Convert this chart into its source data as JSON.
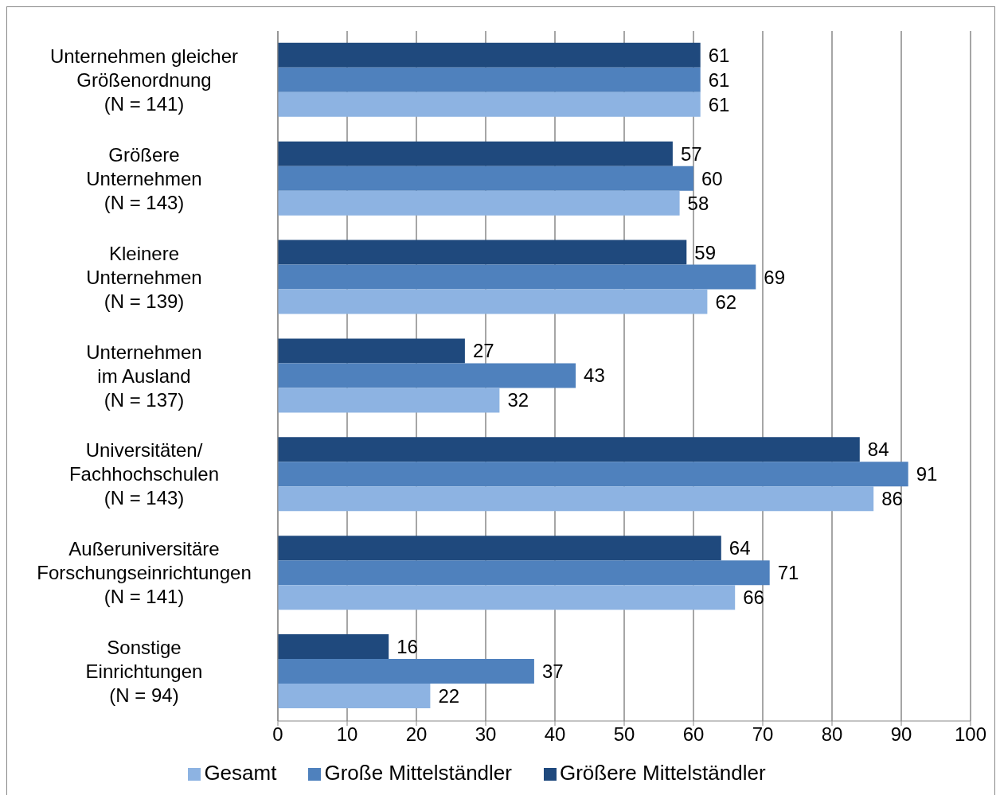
{
  "chart_data": {
    "type": "bar",
    "orientation": "horizontal",
    "categories": [
      "Unternehmen gleicher\nGrößenordnung\n(N = 141)",
      "Größere\nUnternehmen\n(N = 143)",
      "Kleinere\nUnternehmen\n(N = 139)",
      "Unternehmen\nim Ausland\n(N = 137)",
      "Universitäten/\nFachhochschulen\n(N = 143)",
      "Außeruniversitäre\nForschungseinrichtungen\n(N = 141)",
      "Sonstige\nEinrichtungen\n(N = 94)"
    ],
    "series": [
      {
        "name": "Größere Mittelständler",
        "color": "#1f497d",
        "values": [
          61,
          57,
          59,
          27,
          84,
          64,
          16
        ]
      },
      {
        "name": "Große Mittelständler",
        "color": "#4f81bd",
        "values": [
          61,
          60,
          69,
          43,
          91,
          71,
          37
        ]
      },
      {
        "name": "Gesamt",
        "color": "#8db3e2",
        "values": [
          61,
          58,
          62,
          32,
          86,
          66,
          22
        ]
      }
    ],
    "xlim": [
      0,
      100
    ],
    "xticks": [
      0,
      10,
      20,
      30,
      40,
      50,
      60,
      70,
      80,
      90,
      100
    ],
    "grid": "x",
    "legend": "bottom",
    "data_labels": true
  }
}
